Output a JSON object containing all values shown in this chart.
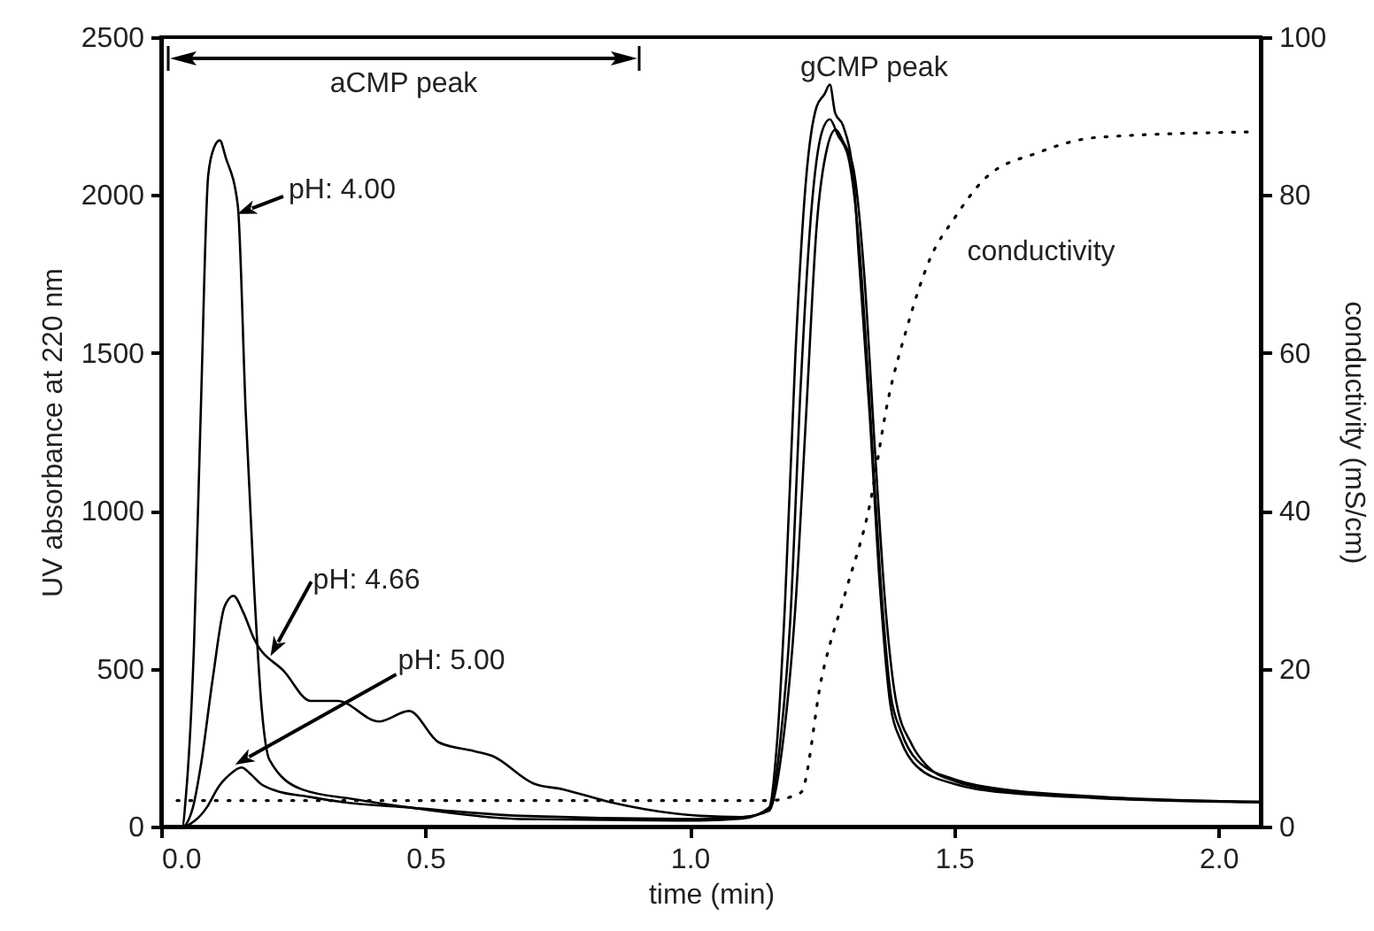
{
  "chart_data": {
    "type": "line",
    "xlabel": "time (min)",
    "ylabel": "UV absorbance at 220 nm",
    "y2label": "conductivity (mS/cm)",
    "xlim": [
      0,
      2.08
    ],
    "xticks": [
      {
        "value": 0,
        "label": "0.0"
      },
      {
        "value": 0.5,
        "label": "0.5"
      },
      {
        "value": 1,
        "label": "1.0"
      },
      {
        "value": 1.5,
        "label": "1.5"
      },
      {
        "value": 2,
        "label": "2.0"
      }
    ],
    "ylim": [
      0,
      2500
    ],
    "yticks": [
      0,
      500,
      1000,
      1500,
      2000,
      2500
    ],
    "y2lim": [
      0,
      100
    ],
    "y2ticks": [
      0,
      20,
      40,
      60,
      80,
      100
    ],
    "grid": false,
    "legend": false,
    "marker": "none",
    "annotations": [
      {
        "text": "pH: 4.00",
        "x": 0.144,
        "y": 1940
      },
      {
        "text": "pH: 4.66",
        "x": 0.207,
        "y": 540
      },
      {
        "text": "pH: 5.00",
        "x": 0.14,
        "y": 196
      },
      {
        "text": "gCMP peak",
        "x": 1.265,
        "y": 2350
      },
      "aCMP peak"
    ],
    "series": [
      {
        "color": "#000000",
        "x": [
          0,
          0.04,
          0.047,
          0.062,
          0.075,
          0.089,
          0.1,
          0.111,
          0.122,
          0.145,
          0.16,
          0.176,
          0.19,
          0.205,
          0.266,
          0.367,
          0.48,
          0.68,
          1.02,
          1.1,
          1.15,
          1.166,
          1.18,
          1.2,
          1.22,
          1.24,
          1.255,
          1.265,
          1.275,
          1.29,
          1.31,
          1.32,
          1.34,
          1.36,
          1.38,
          1.4,
          1.43,
          1.5,
          1.545,
          1.77,
          2.08
        ],
        "values": [
          0,
          0,
          99,
          566,
          1314,
          2061,
          2150,
          2173,
          2120,
          1968,
          1314,
          753,
          379,
          211,
          118,
          86,
          58,
          24,
          19,
          25,
          60,
          286,
          700,
          1500,
          2050,
          2280,
          2320,
          2350,
          2260,
          2220,
          2050,
          1800,
          1313,
          753,
          380,
          270,
          190,
          135,
          118,
          90,
          77
        ]
      },
      {
        "color": "#000000",
        "x": [
          0,
          0.04,
          0.06,
          0.075,
          0.098,
          0.12,
          0.137,
          0.155,
          0.176,
          0.233,
          0.283,
          0.334,
          0.412,
          0.469,
          0.525,
          0.592,
          0.626,
          0.705,
          0.76,
          0.85,
          1.02,
          1.1,
          1.15,
          1.17,
          1.19,
          1.21,
          1.23,
          1.25,
          1.265,
          1.28,
          1.3,
          1.32,
          1.34,
          1.36,
          1.38,
          1.4,
          1.43,
          1.5,
          1.545,
          1.77,
          2.08
        ],
        "values": [
          0,
          0,
          60,
          192,
          473,
          697,
          731,
          680,
          594,
          491,
          398,
          398,
          333,
          366,
          267,
          239,
          224,
          136,
          118,
          77,
          34,
          30,
          55,
          250,
          650,
          1400,
          1950,
          2200,
          2240,
          2190,
          2120,
          1850,
          1350,
          800,
          420,
          300,
          210,
          150,
          130,
          95,
          78
        ]
      },
      {
        "color": "#000000",
        "x": [
          0,
          0.04,
          0.065,
          0.087,
          0.109,
          0.13,
          0.152,
          0.17,
          0.188,
          0.216,
          0.277,
          0.345,
          0.457,
          0.68,
          1.02,
          1.1,
          1.15,
          1.175,
          1.2,
          1.22,
          1.24,
          1.26,
          1.276,
          1.29,
          1.31,
          1.33,
          1.35,
          1.37,
          1.39,
          1.42,
          1.45,
          1.5,
          1.545,
          1.77,
          2.08
        ],
        "values": [
          0,
          0,
          20,
          62,
          127,
          165,
          187,
          165,
          136,
          114,
          95,
          77,
          62,
          34,
          24,
          30,
          50,
          250,
          700,
          1300,
          1900,
          2150,
          2207,
          2170,
          2080,
          1750,
          1200,
          700,
          400,
          260,
          190,
          145,
          125,
          92,
          78
        ]
      },
      {
        "name": "conductivity",
        "color": "#000000",
        "axis": "y2",
        "line_style": "dotted",
        "x": [
          0.03,
          0.3,
          0.6,
          0.9,
          1.15,
          1.21,
          1.25,
          1.296,
          1.34,
          1.375,
          1.41,
          1.455,
          1.5,
          1.557,
          1.66,
          1.77,
          2.066
        ],
        "values": [
          3.3,
          3.3,
          3.3,
          3.3,
          3.3,
          4.3,
          19,
          30,
          40.6,
          54,
          63,
          72,
          77,
          82,
          85.4,
          87.3,
          88
        ]
      }
    ]
  }
}
